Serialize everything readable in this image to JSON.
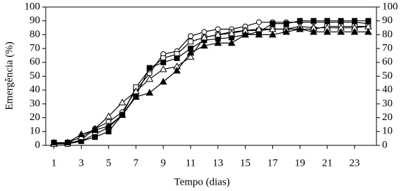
{
  "chart_data": {
    "type": "line",
    "xlabel": "Tempo (dias)",
    "ylabel": "Emergência (%)",
    "x": [
      1,
      2,
      3,
      4,
      5,
      6,
      7,
      8,
      9,
      10,
      11,
      12,
      13,
      14,
      15,
      16,
      17,
      18,
      19,
      20,
      21,
      22,
      23,
      24
    ],
    "xlim": [
      0.4,
      24.6
    ],
    "xticks": [
      1,
      3,
      5,
      7,
      9,
      11,
      13,
      15,
      17,
      19,
      21,
      23
    ],
    "ylim": [
      0,
      100
    ],
    "yticks": [
      0,
      10,
      20,
      30,
      40,
      50,
      60,
      70,
      80,
      90,
      100
    ],
    "y2lim": [
      0,
      100
    ],
    "y2ticks": [
      0,
      10,
      20,
      30,
      40,
      50,
      60,
      70,
      80,
      90,
      100
    ],
    "series": [
      {
        "color": "#000000",
        "marker": "circle",
        "filled": false,
        "values": [
          1,
          1,
          4,
          12,
          17,
          24,
          40,
          52,
          66,
          68,
          79,
          82,
          84,
          84,
          86,
          89,
          89,
          89,
          89,
          89,
          89,
          89,
          89,
          88
        ]
      },
      {
        "color": "#000000",
        "marker": "square",
        "filled": false,
        "values": [
          2,
          1,
          3,
          8,
          13,
          22,
          42,
          55,
          63,
          66,
          75,
          78,
          80,
          82,
          83,
          83,
          84,
          84,
          84,
          84,
          86,
          86,
          86,
          86
        ]
      },
      {
        "color": "#000000",
        "marker": "square",
        "filled": true,
        "values": [
          2,
          2,
          3,
          6,
          10,
          22,
          36,
          56,
          60,
          63,
          70,
          76,
          77,
          78,
          80,
          82,
          88,
          88,
          90,
          90,
          90,
          90,
          90,
          90
        ]
      },
      {
        "color": "#000000",
        "marker": "triangle",
        "filled": false,
        "values": [
          1,
          2,
          6,
          12,
          21,
          31,
          39,
          48,
          55,
          57,
          64,
          78,
          80,
          81,
          83,
          84,
          84,
          84,
          86,
          85,
          85,
          85,
          85,
          86
        ]
      },
      {
        "color": "#000000",
        "marker": "triangle",
        "filled": true,
        "values": [
          2,
          2,
          8,
          11,
          14,
          22,
          35,
          38,
          46,
          54,
          67,
          72,
          74,
          74,
          80,
          80,
          80,
          82,
          84,
          82,
          82,
          82,
          82,
          82
        ]
      }
    ]
  }
}
